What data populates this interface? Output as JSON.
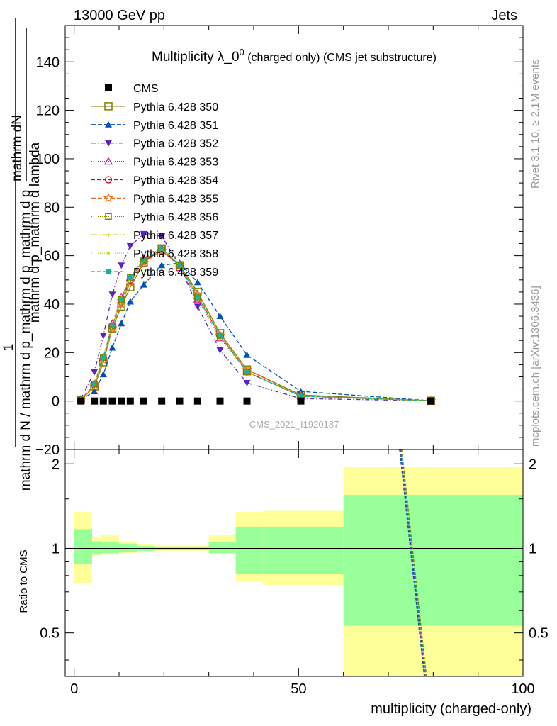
{
  "header": {
    "energy": "13000 GeV pp",
    "category": "Jets"
  },
  "side_texts": {
    "rivet": "Rivet 3.1.10, ≥ 2.1M events",
    "source": "mcplots.cern.ch [arXiv:1306.3436]"
  },
  "chart_data": {
    "type": "line",
    "title": "Multiplicity λ_0⁰",
    "title_main": "Multiplicity λ_0",
    "title_sup": "0",
    "title_suffix": " (charged only) (CMS jet substructure)",
    "analysis_id": "CMS_2021_I1920187",
    "xlabel": "multiplicity (charged-only)",
    "ylabel_main": {
      "top_numerator": "mathrm dN",
      "top_denominator": "mathrm d p_mathrm d lambda",
      "main_fraction_num": "1",
      "main_fraction_den": "mathrm d N / mathrm d p_mathrm d p_mathrm d p"
    },
    "ylabel_ratio": "Ratio to CMS",
    "xlim": [
      -2,
      100
    ],
    "ylim_main": [
      -20,
      155
    ],
    "ylim_ratio": [
      0.35,
      2.25
    ],
    "ratio_log_scale": true,
    "x_ticks": [
      "0",
      "50",
      "100"
    ],
    "y_ticks_main": [
      "−20",
      "0",
      "20",
      "40",
      "60",
      "80",
      "100",
      "120",
      "140"
    ],
    "y_ticks_ratio": [
      "0.5",
      "1",
      "2"
    ],
    "legend_position": "top-left",
    "cms": {
      "name": "CMS",
      "x": [
        1.5,
        4.5,
        6.5,
        8.5,
        10.5,
        12.5,
        15.5,
        19.5,
        23.5,
        27.5,
        32.5,
        38.5,
        50.5,
        79.5
      ],
      "y": [
        0,
        0,
        0,
        0,
        0,
        0,
        0,
        0,
        0,
        0,
        0,
        0,
        0,
        0
      ]
    },
    "mc_x": [
      1.5,
      4.5,
      6.5,
      8.5,
      10.5,
      12.5,
      15.5,
      19.5,
      23.5,
      27.5,
      32.5,
      38.5,
      50.5,
      79.5
    ],
    "series": [
      {
        "name": "Pythia 6.428 350",
        "color": "#808000",
        "marker": "square-open",
        "dash": "",
        "values": [
          0.5,
          6,
          16,
          30,
          39,
          47,
          57,
          63,
          56,
          45,
          28,
          13,
          2.5,
          0.1
        ]
      },
      {
        "name": "Pythia 6.428 351",
        "color": "#0051b8",
        "marker": "triangle-up-filled",
        "dash": "6,3",
        "values": [
          0.5,
          4,
          11,
          22,
          32,
          41,
          48,
          56,
          57,
          49,
          35,
          19,
          4,
          0.1
        ]
      },
      {
        "name": "Pythia 6.428 352",
        "color": "#5a22c8",
        "marker": "triangle-down-filled",
        "dash": "6,3,1,3",
        "values": [
          1,
          12,
          27,
          44,
          56,
          64,
          69,
          68,
          56,
          39,
          21,
          7.5,
          1,
          0.1
        ]
      },
      {
        "name": "Pythia 6.428 353",
        "color": "#c8137c",
        "marker": "triangle-up-open",
        "dash": "1,2",
        "values": [
          0.5,
          7,
          18,
          32,
          43,
          51,
          59,
          63,
          55,
          42,
          26,
          12,
          2,
          0.1
        ]
      },
      {
        "name": "Pythia 6.428 354",
        "color": "#d6001e",
        "marker": "circle-open",
        "dash": "5,3",
        "values": [
          0.5,
          7,
          18,
          31,
          42,
          50,
          58,
          62,
          56,
          43,
          27,
          12,
          2,
          0.1
        ]
      },
      {
        "name": "Pythia 6.428 355",
        "color": "#ec6d14",
        "marker": "star-open",
        "dash": "6,3",
        "values": [
          0.5,
          6,
          17,
          30,
          40,
          49,
          57,
          62,
          56,
          44,
          27,
          13,
          2,
          0.1
        ]
      },
      {
        "name": "Pythia 6.428 356",
        "color": "#808000",
        "marker": "square-open-small",
        "dash": "1,2",
        "values": [
          0.5,
          7,
          18,
          31,
          42,
          51,
          58,
          63,
          56,
          43,
          27,
          12,
          2,
          0.1
        ]
      },
      {
        "name": "Pythia 6.428 357",
        "color": "#c8c800",
        "marker": "cross-small",
        "dash": "8,3,1,3",
        "values": [
          0.5,
          7,
          18,
          31,
          42,
          51,
          58,
          63,
          56,
          43,
          27,
          12,
          2,
          0.1
        ]
      },
      {
        "name": "Pythia 6.428 358",
        "color": "#bcd600",
        "marker": "dot",
        "dash": "1,2",
        "values": [
          0.5,
          7,
          18,
          31,
          42,
          51,
          58,
          63,
          56,
          43,
          27,
          12,
          2,
          0.1
        ]
      },
      {
        "name": "Pythia 6.428 359",
        "color": "#10b39c",
        "marker": "square-filled-small",
        "dash": "5,3",
        "values": [
          0.5,
          7,
          18,
          31,
          42,
          51,
          58,
          63,
          56,
          43,
          27,
          12,
          2,
          0.1
        ]
      }
    ],
    "ratio_band": {
      "x_edges": [
        0,
        4,
        6,
        8,
        10,
        12,
        14,
        18,
        22,
        26,
        30,
        36,
        42,
        60,
        100
      ],
      "inner_lo": [
        0.88,
        0.95,
        0.96,
        0.96,
        0.97,
        0.97,
        0.98,
        0.985,
        0.985,
        0.985,
        0.96,
        0.81,
        0.81,
        0.53
      ],
      "inner_hi": [
        1.17,
        1.06,
        1.05,
        1.05,
        1.04,
        1.04,
        1.02,
        1.015,
        1.015,
        1.015,
        1.05,
        1.19,
        1.19,
        1.55
      ],
      "outer_lo": [
        0.75,
        0.94,
        0.95,
        0.95,
        0.96,
        0.96,
        0.97,
        0.98,
        0.98,
        0.98,
        0.95,
        0.76,
        0.74,
        0.35
      ],
      "outer_hi": [
        1.35,
        1.1,
        1.12,
        1.12,
        1.06,
        1.06,
        1.04,
        1.03,
        1.03,
        1.03,
        1.12,
        1.35,
        1.36,
        1.95
      ],
      "inner_color": "#99ff99",
      "outer_color": "#ffff99"
    },
    "ratio_lines": [
      {
        "color": "#0051b8",
        "x": [
          72.5,
          78
        ],
        "y": [
          2.25,
          0.35
        ]
      },
      {
        "color": "#5a22c8",
        "x": [
          72.7,
          78.2
        ],
        "y": [
          2.25,
          0.35
        ]
      },
      {
        "color": "#10b39c",
        "x": [
          72.9,
          78.4
        ],
        "y": [
          2.25,
          0.35
        ]
      },
      {
        "color": "#808000",
        "x": [
          73.0,
          78.5
        ],
        "y": [
          2.25,
          0.35
        ]
      }
    ]
  }
}
